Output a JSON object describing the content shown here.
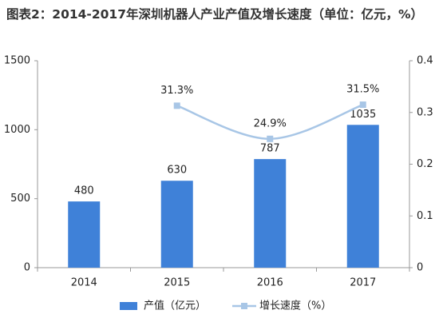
{
  "chart_data": {
    "type": "bar",
    "title": "图表2：2014-2017年深圳机器人产业产值及增长速度（单位：亿元，%）",
    "categories": [
      "2014",
      "2015",
      "2016",
      "2017"
    ],
    "series": [
      {
        "name": "产值（亿元）",
        "type": "bar",
        "color": "#3f81d8",
        "values": [
          480,
          630,
          787,
          1035
        ]
      },
      {
        "name": "增长速度（%）",
        "type": "line",
        "axis": "y2",
        "color": "#a8c6e6",
        "values": [
          null,
          0.313,
          0.249,
          0.315
        ],
        "value_labels": [
          null,
          "31.3%",
          "24.9%",
          "31.5%"
        ]
      }
    ],
    "ylim": [
      0,
      1500
    ],
    "yticks": [
      0,
      500,
      1000,
      1500
    ],
    "y2lim": [
      0,
      0.4
    ],
    "y2ticks": [
      0,
      0.1,
      0.2,
      0.3,
      0.4
    ],
    "grid": false,
    "legend": "bottom"
  }
}
